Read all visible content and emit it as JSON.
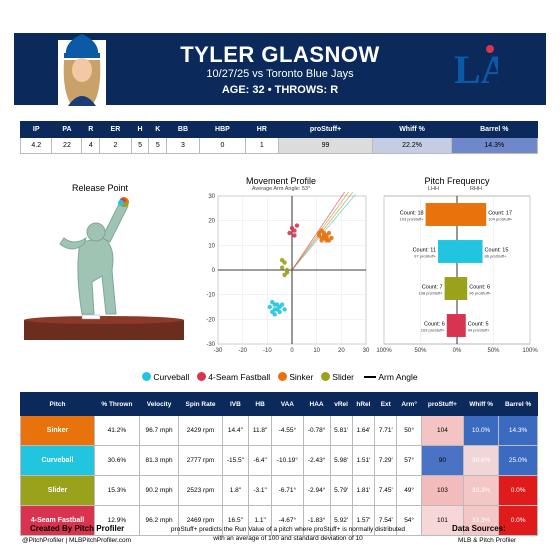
{
  "header": {
    "name": "TYLER GLASNOW",
    "game": "10/27/25 vs Toronto Blue Jays",
    "bio": "AGE: 32 • THROWS: R",
    "logo_text": "LA",
    "colors": {
      "navy": "#0b2a5b",
      "dodger_blue": "#0a5aa8"
    }
  },
  "summary": {
    "columns": [
      "IP",
      "PA",
      "R",
      "ER",
      "H",
      "K",
      "BB",
      "HBP",
      "HR",
      "proStuff+",
      "Whiff %",
      "Barrel %"
    ],
    "values": [
      "4.2",
      "22",
      "4",
      "2",
      "5",
      "5",
      "3",
      "0",
      "1",
      "99",
      "22.2%",
      "14.3%"
    ],
    "cell_colors": {
      "proStuff+": "#dcdcdc",
      "Whiff %": "#c4cde3",
      "Barrel %": "#6f88c9"
    }
  },
  "release_point": {
    "title": "Release Point"
  },
  "movement": {
    "title": "Movement Profile",
    "subtitle": "Average Arm Angle: 53°",
    "axis_ticks": [
      "-30",
      "-20",
      "-10",
      "0",
      "10",
      "20",
      "30"
    ]
  },
  "frequency": {
    "title": "Pitch Frequency",
    "lhh": "LHH",
    "rhh": "RHH",
    "ticks": [
      "100%",
      "50%",
      "0%",
      "50%",
      "100%"
    ]
  },
  "legend": {
    "items": [
      {
        "name": "Curveball",
        "color": "#22c5e0"
      },
      {
        "name": "4-Seam Fastball",
        "color": "#d8344f"
      },
      {
        "name": "Sinker",
        "color": "#e8720c"
      },
      {
        "name": "Slider",
        "color": "#9aa11b"
      }
    ],
    "arm_angle": "Arm Angle"
  },
  "pitch_table": {
    "columns": [
      "Pitch",
      "% Thrown",
      "Velocity",
      "Spin Rate",
      "IVB",
      "HB",
      "VAA",
      "HAA",
      "vRel",
      "hRel",
      "Ext",
      "Arm°",
      "proStuff+",
      "Whiff %",
      "Barrel %"
    ],
    "rows": [
      {
        "pitch": "Sinker",
        "color": "#e8720c",
        "cells": [
          "41.2%",
          "96.7 mph",
          "2429 rpm",
          "14.4\"",
          "11.8\"",
          "-4.55°",
          "-0.78°",
          "5.81'",
          "1.64'",
          "7.71'",
          "50°",
          "104",
          "10.0%",
          "14.3%"
        ],
        "heat": [
          "#f4c4c4",
          "#3a6bc0",
          "#3a6bc0"
        ]
      },
      {
        "pitch": "Curveball",
        "color": "#22c5e0",
        "cells": [
          "30.6%",
          "81.3 mph",
          "2777 rpm",
          "-15.5\"",
          "-6.4\"",
          "-10.19°",
          "-2.43°",
          "5.98'",
          "1.51'",
          "7.29'",
          "57°",
          "90",
          "30.6%",
          "25.0%"
        ],
        "heat": [
          "#4a73c6",
          "#f0d6d6",
          "#3a6bc0"
        ]
      },
      {
        "pitch": "Slider",
        "color": "#9aa11b",
        "cells": [
          "15.3%",
          "90.2 mph",
          "2523 rpm",
          "1.8\"",
          "-3.1\"",
          "-6.71°",
          "-2.94°",
          "5.79'",
          "1.81'",
          "7.45'",
          "49°",
          "103",
          "33.3%",
          "0.0%"
        ],
        "heat": [
          "#f2bcbc",
          "#f4c6c6",
          "#e01b1b"
        ]
      },
      {
        "pitch": "4-Seam Fastball",
        "color": "#d8344f",
        "cells": [
          "12.9%",
          "96.2 mph",
          "2469 rpm",
          "16.5\"",
          "1.1\"",
          "-4.67°",
          "-1.83°",
          "5.92'",
          "1.57'",
          "7.54'",
          "54°",
          "101",
          "33.3%",
          "0.0%"
        ],
        "heat": [
          "#f6d6d6",
          "#f4c6c6",
          "#e01b1b"
        ]
      }
    ]
  },
  "chart_data": [
    {
      "type": "scatter",
      "title": "Movement Profile",
      "subtitle": "Average Arm Angle: 53°",
      "xlim": [
        -30,
        30
      ],
      "ylim": [
        -30,
        30
      ],
      "grid": true,
      "series": [
        {
          "name": "Sinker",
          "color": "#e8720c",
          "points": [
            [
              11,
              15
            ],
            [
              12,
              13
            ],
            [
              13,
              14
            ],
            [
              14,
              13
            ],
            [
              15,
              12
            ],
            [
              12,
              16
            ],
            [
              13,
              15
            ],
            [
              14,
              14
            ],
            [
              16,
              13
            ],
            [
              11,
              14
            ],
            [
              15,
              15
            ],
            [
              12,
              12
            ],
            [
              14,
              12
            ],
            [
              13,
              13
            ]
          ]
        },
        {
          "name": "Curveball",
          "color": "#22c5e0",
          "points": [
            [
              -8,
              -13
            ],
            [
              -7,
              -14
            ],
            [
              -6,
              -16
            ],
            [
              -5,
              -15
            ],
            [
              -8,
              -17
            ],
            [
              -7,
              -18
            ],
            [
              -6,
              -14
            ],
            [
              -5,
              -17
            ],
            [
              -4,
              -14
            ],
            [
              -9,
              -15
            ],
            [
              -7,
              -16
            ],
            [
              -3,
              -16
            ]
          ]
        },
        {
          "name": "Slider",
          "color": "#9aa11b",
          "points": [
            [
              -3,
              3
            ],
            [
              -2,
              -1
            ],
            [
              -4,
              1
            ],
            [
              -3,
              -2
            ],
            [
              -2,
              0
            ],
            [
              -4,
              4
            ]
          ]
        },
        {
          "name": "4-Seam Fastball",
          "color": "#d8344f",
          "points": [
            [
              0,
              17
            ],
            [
              1,
              16
            ],
            [
              2,
              18
            ],
            [
              -1,
              15
            ],
            [
              1,
              14
            ]
          ]
        }
      ],
      "arm_angle_deg": 53
    },
    {
      "type": "bar",
      "title": "Pitch Frequency",
      "xlim": [
        -100,
        100
      ],
      "categories": [
        "Sinker",
        "Curveball",
        "Slider",
        "4-Seam Fastball"
      ],
      "colors": [
        "#e8720c",
        "#22c5e0",
        "#9aa11b",
        "#d8344f"
      ],
      "series": [
        {
          "name": "LHH",
          "values": [
            18,
            11,
            7,
            6
          ],
          "labels": [
            "Count: 18",
            "Count: 11",
            "Count: 7",
            "Count: 6"
          ],
          "sublabels": [
            "103 proStuff+",
            "97 proStuff+",
            "108 proStuff+",
            "103 proStuff+"
          ]
        },
        {
          "name": "RHH",
          "values": [
            17,
            15,
            6,
            5
          ],
          "labels": [
            "Count: 17",
            "Count: 15",
            "Count: 6",
            "Count: 5"
          ],
          "sublabels": [
            "104 proStuff+",
            "86 proStuff+",
            "96 proStuff+",
            "99 proStuff+"
          ]
        }
      ],
      "percent_lhh": [
        43,
        26,
        17,
        14
      ],
      "percent_rhh": [
        40,
        35,
        14,
        12
      ]
    }
  ],
  "footer": {
    "created_by": "Created By Pitch Profiler",
    "handles": "@PitchProfiler | MLBPitchProfiler.com",
    "note": "proStuff+ predicts the Run Value of a pitch where proStuff+ is normally distributed with an average of 100 and standard deviation of 10",
    "sources_title": "Data Sources:",
    "sources": "MLB & Pitch Profiler"
  }
}
